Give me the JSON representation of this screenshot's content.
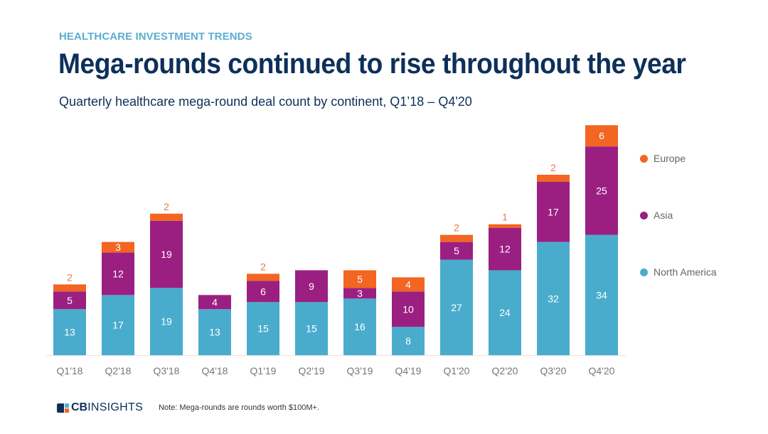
{
  "header": {
    "eyebrow": "HEALTHCARE INVESTMENT TRENDS",
    "title": "Mega-rounds continued to rise throughout the year",
    "subtitle": "Quarterly healthcare mega-round deal count by continent, Q1’18 – Q4'20"
  },
  "footer": {
    "logo_cb": "CB",
    "logo_insights": "INSIGHTS",
    "note": "Note: Mega-rounds are rounds worth $100M+."
  },
  "chart_data": {
    "type": "bar",
    "stacked": true,
    "title": "Mega-rounds continued to rise throughout the year",
    "subtitle": "Quarterly healthcare mega-round deal count by continent, Q1’18 – Q4'20",
    "xlabel": "",
    "ylabel": "",
    "ylim": [
      0,
      65
    ],
    "grid": false,
    "legend_position": "right",
    "categories": [
      "Q1'18",
      "Q2'18",
      "Q3'18",
      "Q4'18",
      "Q1'19",
      "Q2'19",
      "Q3'19",
      "Q4'19",
      "Q1'20",
      "Q2'20",
      "Q3'20",
      "Q4'20"
    ],
    "series": [
      {
        "name": "North America",
        "color": "#4aaccd",
        "values": [
          13,
          17,
          19,
          13,
          15,
          15,
          16,
          8,
          27,
          24,
          32,
          34
        ]
      },
      {
        "name": "Asia",
        "color": "#9b1f81",
        "values": [
          5,
          12,
          19,
          4,
          6,
          9,
          3,
          10,
          5,
          12,
          17,
          25
        ]
      },
      {
        "name": "Europe",
        "color": "#f26522",
        "values": [
          2,
          3,
          2,
          0,
          2,
          0,
          5,
          4,
          2,
          1,
          2,
          6
        ]
      }
    ],
    "legend_order": [
      "Europe",
      "Asia",
      "North America"
    ]
  }
}
